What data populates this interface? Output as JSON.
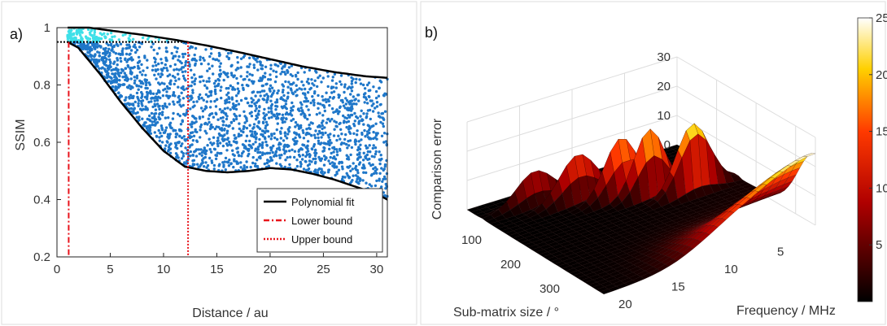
{
  "panels": {
    "a": "a)",
    "b": "b)"
  },
  "chart_data": [
    {
      "type": "scatter",
      "panel": "a)",
      "xlabel": "Distance / au",
      "ylabel": "SSIM",
      "xlim": [
        0,
        31
      ],
      "ylim": [
        0.2,
        1.0
      ],
      "xticks": [
        0,
        5,
        10,
        15,
        20,
        25,
        30
      ],
      "yticks": [
        0.2,
        0.4,
        0.6,
        0.8,
        1
      ],
      "ytick_labels": [
        "0.2",
        "0.4",
        "0.6",
        "0.8",
        "1"
      ],
      "grid": false,
      "legend_position": "bottom-right",
      "threshold_y": 0.95,
      "scatter_colors": {
        "main": "#1f77c9",
        "above_threshold": "#3fe0e8"
      },
      "series": [
        {
          "name": "Polynomial fit",
          "kind": "line",
          "style": "solid",
          "color": "#000000",
          "upper_curve": {
            "x": [
              1,
              3,
              5,
              8,
              11,
              14,
              17,
              20,
              23,
              26,
              29,
              31
            ],
            "y": [
              1.0,
              1.0,
              0.99,
              0.975,
              0.958,
              0.938,
              0.915,
              0.89,
              0.865,
              0.845,
              0.83,
              0.825
            ]
          },
          "lower_curve": {
            "x": [
              1,
              2,
              4,
              6,
              8,
              10,
              12,
              14,
              16,
              18,
              20,
              22,
              24,
              26,
              28,
              30,
              31
            ],
            "y": [
              0.95,
              0.93,
              0.84,
              0.74,
              0.65,
              0.57,
              0.515,
              0.5,
              0.495,
              0.5,
              0.51,
              0.505,
              0.49,
              0.47,
              0.445,
              0.42,
              0.4
            ]
          }
        },
        {
          "name": "Lower bound",
          "kind": "vline",
          "style": "dashdot",
          "color": "#e8131b",
          "x": 1.1
        },
        {
          "name": "Upper bound",
          "kind": "vline",
          "style": "dotted",
          "color": "#e8131b",
          "x": 12.3
        }
      ]
    },
    {
      "type": "surface",
      "panel": "b)",
      "xlabel": "Sub-matrix size / °",
      "ylabel": "Frequency / MHz",
      "zlabel": "Comparison error",
      "x_ticks": [
        100,
        200,
        300
      ],
      "y_ticks": [
        5,
        10,
        15,
        20
      ],
      "z_ticks": [
        0,
        10,
        20,
        30
      ],
      "colorbar_ticks": [
        5,
        10,
        15,
        20,
        25
      ],
      "colormap": "hot",
      "clim": [
        0,
        25
      ],
      "features": [
        {
          "sub_matrix_size": 15,
          "frequency": 20,
          "error": 1
        },
        {
          "sub_matrix_size": 40,
          "frequency": 15,
          "error": 12
        },
        {
          "sub_matrix_size": 70,
          "frequency": 12,
          "error": 17
        },
        {
          "sub_matrix_size": 110,
          "frequency": 8,
          "error": 25
        },
        {
          "sub_matrix_size": 150,
          "frequency": 3,
          "error": 28
        },
        {
          "sub_matrix_size": 300,
          "frequency": 1,
          "error": 23
        },
        {
          "sub_matrix_size": 340,
          "frequency": 20,
          "error": 1
        }
      ]
    }
  ]
}
